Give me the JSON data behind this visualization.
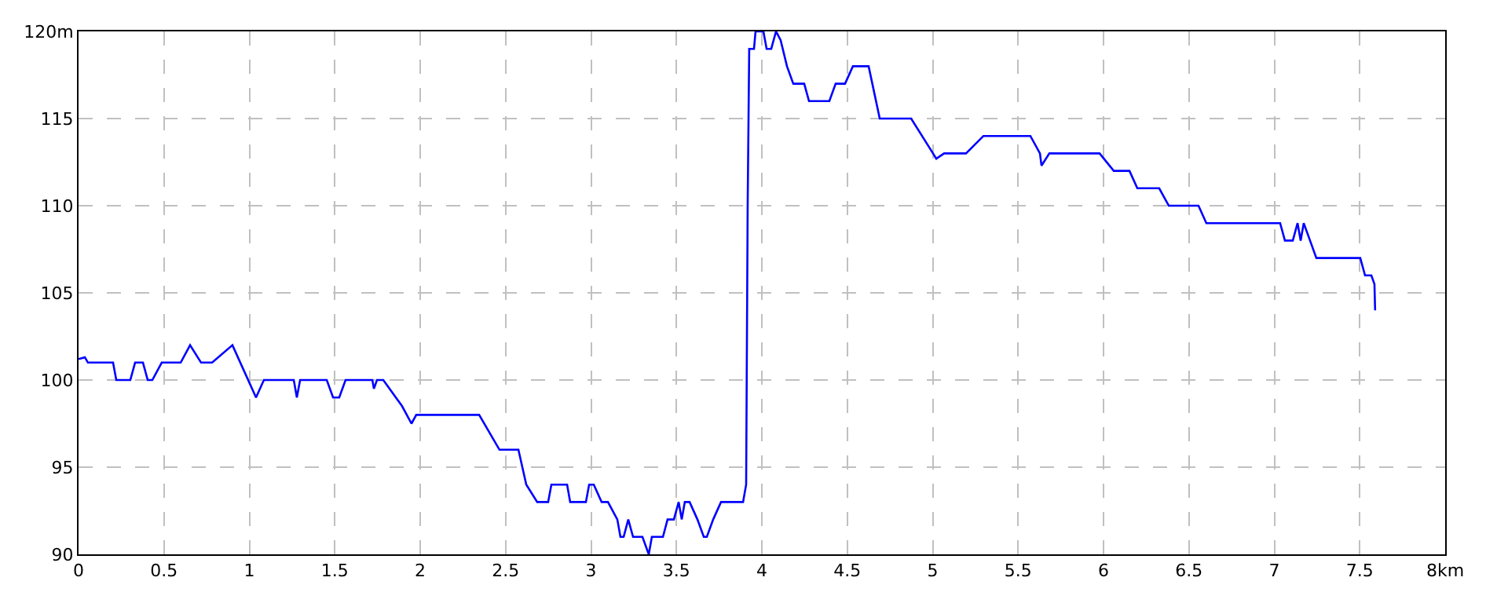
{
  "chart_data": {
    "type": "line",
    "x": [
      0,
      0.037,
      0.055,
      0.202,
      0.221,
      0.303,
      0.331,
      0.377,
      0.405,
      0.432,
      0.487,
      0.598,
      0.653,
      0.717,
      0.782,
      0.901,
      1.039,
      1.085,
      1.26,
      1.278,
      1.297,
      1.453,
      1.49,
      1.526,
      1.563,
      1.72,
      1.729,
      1.747,
      1.784,
      1.894,
      1.949,
      1.977,
      2.345,
      2.464,
      2.575,
      2.621,
      2.685,
      2.749,
      2.768,
      2.86,
      2.878,
      2.97,
      2.989,
      3.016,
      3.062,
      3.099,
      3.154,
      3.172,
      3.191,
      3.218,
      3.246,
      3.264,
      3.301,
      3.338,
      3.356,
      3.421,
      3.448,
      3.485,
      3.513,
      3.531,
      3.549,
      3.577,
      3.623,
      3.66,
      3.678,
      3.715,
      3.761,
      3.89,
      3.908,
      3.917,
      3.926,
      3.954,
      3.963,
      4.009,
      4.028,
      4.055,
      4.083,
      4.11,
      4.147,
      4.184,
      4.248,
      4.276,
      4.395,
      4.432,
      4.487,
      4.533,
      4.625,
      4.69,
      4.874,
      5.002,
      5.021,
      5.067,
      5.195,
      5.297,
      5.572,
      5.628,
      5.637,
      5.683,
      5.977,
      6.06,
      6.152,
      6.198,
      6.326,
      6.382,
      6.556,
      6.602,
      7.034,
      7.062,
      7.108,
      7.136,
      7.154,
      7.172,
      7.209,
      7.246,
      7.503,
      7.531,
      7.568,
      7.586,
      7.59
    ],
    "series": [
      {
        "color": "#0000ff",
        "values": [
          101.2,
          101.3,
          101,
          101,
          100,
          100,
          101,
          101,
          100,
          100,
          101,
          101,
          102,
          101,
          101,
          102,
          99,
          100,
          100,
          99,
          100,
          100,
          99,
          99,
          100,
          100,
          99.5,
          100,
          100,
          98.5,
          97.5,
          98,
          98,
          96,
          96,
          94,
          93,
          93,
          94,
          94,
          93,
          93,
          94,
          94,
          93,
          93,
          92,
          91,
          91,
          92,
          91,
          91,
          91,
          90,
          91,
          91,
          92,
          92,
          93,
          92,
          93,
          93,
          92,
          91,
          91,
          92,
          93,
          93,
          94,
          110,
          119,
          119,
          120,
          120,
          119,
          119,
          120,
          119.5,
          118,
          117,
          117,
          116,
          116,
          117,
          117,
          118,
          118,
          115,
          115,
          113,
          112.7,
          113,
          113,
          114,
          114,
          113,
          112.3,
          113,
          113,
          112,
          112,
          111,
          111,
          110,
          110,
          109,
          109,
          108,
          108,
          109,
          108,
          109,
          108,
          107,
          107,
          106,
          106,
          105.5,
          104
        ]
      }
    ],
    "xlim": [
      0,
      8
    ],
    "ylim": [
      90,
      120
    ],
    "xticks": [
      0,
      0.5,
      1,
      1.5,
      2,
      2.5,
      3,
      3.5,
      4,
      4.5,
      5,
      5.5,
      6,
      6.5,
      7,
      7.5,
      {
        "value": 8,
        "label": "8km"
      }
    ],
    "yticks": [
      90,
      95,
      100,
      105,
      110,
      115,
      {
        "value": 120,
        "label": "120m"
      }
    ],
    "grid": true,
    "marker": "none",
    "line_style": "solid"
  }
}
